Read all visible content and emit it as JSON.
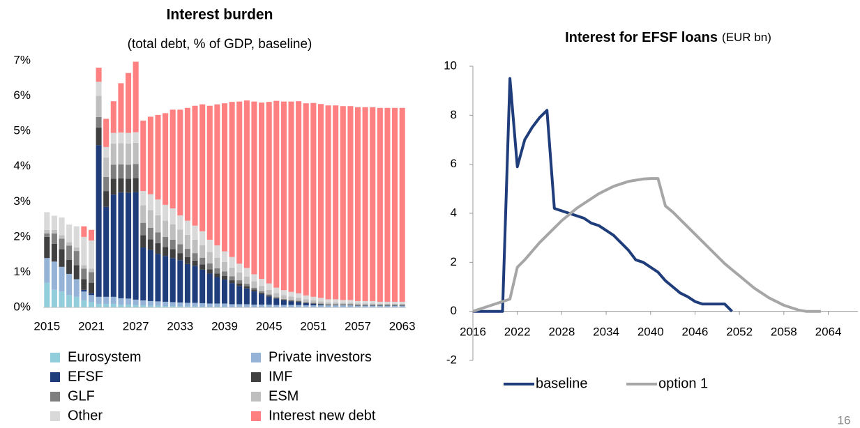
{
  "chart_data": [
    {
      "type": "stacked-bar",
      "title": "Interest burden",
      "subtitle": "(total debt, % of GDP, baseline)",
      "categories": [
        "2015",
        null,
        null,
        null,
        null,
        null,
        "2021",
        null,
        null,
        null,
        null,
        null,
        "2027",
        null,
        null,
        null,
        null,
        null,
        "2033",
        null,
        null,
        null,
        null,
        null,
        "2039",
        null,
        null,
        null,
        null,
        null,
        "2045",
        null,
        null,
        null,
        null,
        null,
        "2051",
        null,
        null,
        null,
        null,
        null,
        "2057",
        null,
        null,
        null,
        null,
        null,
        "2063"
      ],
      "ylim": [
        0,
        7
      ],
      "yticks": [
        {
          "value": 0,
          "label": "0%"
        },
        {
          "value": 1,
          "label": "1%"
        },
        {
          "value": 2,
          "label": "2%"
        },
        {
          "value": 3,
          "label": "3%"
        },
        {
          "value": 4,
          "label": "4%"
        },
        {
          "value": 5,
          "label": "5%"
        },
        {
          "value": 6,
          "label": "6%"
        },
        {
          "value": 7,
          "label": "7%"
        }
      ],
      "series": [
        {
          "name": "Eurosystem",
          "color": "#92cddc",
          "values": [
            0.7,
            0.5,
            0.45,
            0.35,
            0.3,
            0.2,
            0.15,
            0.1,
            0.1,
            0.1,
            0.08,
            0.08,
            0.07,
            0.06,
            0.05,
            0.05,
            0.04,
            0.04,
            0.03,
            0.03,
            0.03,
            0.02,
            0.02,
            0.02,
            0.02,
            0.01,
            0.01,
            0.01,
            0.01,
            0.01,
            0.01,
            0.01,
            0.01,
            0.01,
            0.01,
            0.01,
            0.01,
            0.01,
            0.01,
            0.01,
            0.01,
            0.01,
            0.01,
            0.01,
            0.01,
            0.01,
            0.01,
            0.01,
            0.01
          ]
        },
        {
          "name": "Private investors",
          "color": "#95b3d7",
          "values": [
            0.7,
            0.8,
            0.7,
            0.6,
            0.5,
            0.25,
            0.2,
            0.2,
            0.2,
            0.2,
            0.18,
            0.17,
            0.15,
            0.14,
            0.13,
            0.12,
            0.12,
            0.11,
            0.11,
            0.1,
            0.1,
            0.1,
            0.09,
            0.09,
            0.09,
            0.08,
            0.08,
            0.08,
            0.07,
            0.07,
            0.07,
            0.06,
            0.06,
            0.06,
            0.06,
            0.05,
            0.05,
            0.05,
            0.05,
            0.05,
            0.05,
            0.05,
            0.04,
            0.04,
            0.04,
            0.04,
            0.04,
            0.04,
            0.04
          ]
        },
        {
          "name": "EFSF",
          "color": "#1f3d7a",
          "values": [
            0,
            0,
            0,
            0,
            0,
            0.05,
            0.05,
            4.3,
            2.55,
            2.9,
            3.0,
            3.0,
            3.05,
            1.5,
            1.45,
            1.35,
            1.3,
            1.25,
            1.2,
            1.1,
            1.05,
            0.95,
            0.85,
            0.75,
            0.68,
            0.6,
            0.52,
            0.45,
            0.38,
            0.3,
            0.23,
            0.18,
            0.13,
            0.1,
            0.08,
            0.06,
            0.04,
            0.02,
            0,
            0,
            0,
            0,
            0,
            0,
            0,
            0,
            0,
            0,
            0
          ]
        },
        {
          "name": "IMF",
          "color": "#404040",
          "values": [
            0.6,
            0.5,
            0.5,
            0.4,
            0.4,
            0.3,
            0.3,
            0.5,
            0.45,
            0.45,
            0.4,
            0.4,
            0.4,
            0.35,
            0.3,
            0.3,
            0.25,
            0.25,
            0.2,
            0.2,
            0.15,
            0.15,
            0.12,
            0.1,
            0.1,
            0.08,
            0.07,
            0.06,
            0.05,
            0.04,
            0.03,
            0.02,
            0.02,
            0.02,
            0.02,
            0.01,
            0.01,
            0.01,
            0.01,
            0.01,
            0.01,
            0.01,
            0.01,
            0.01,
            0.01,
            0.01,
            0.01,
            0.01,
            0.01
          ]
        },
        {
          "name": "GLF",
          "color": "#7f7f7f",
          "values": [
            0.1,
            0.3,
            0.3,
            0.4,
            0.4,
            0.3,
            0.3,
            0.3,
            0.4,
            0.4,
            0.4,
            0.4,
            0.4,
            0.35,
            0.33,
            0.31,
            0.29,
            0.27,
            0.25,
            0.23,
            0.21,
            0.19,
            0.17,
            0.15,
            0.13,
            0.11,
            0.09,
            0.07,
            0.05,
            0.04,
            0.03,
            0.02,
            0.02,
            0.02,
            0.02,
            0.02,
            0.02,
            0.02,
            0.02,
            0.02,
            0.02,
            0.02,
            0.02,
            0.02,
            0.02,
            0.02,
            0.02,
            0.02,
            0.02
          ]
        },
        {
          "name": "ESM",
          "color": "#bfbfbf",
          "values": [
            0.1,
            0.1,
            0.1,
            0.1,
            0.1,
            0.1,
            0.1,
            0.6,
            0.55,
            0.6,
            0.6,
            0.6,
            0.6,
            0.5,
            0.5,
            0.48,
            0.46,
            0.44,
            0.42,
            0.4,
            0.38,
            0.35,
            0.32,
            0.3,
            0.27,
            0.25,
            0.22,
            0.2,
            0.18,
            0.15,
            0.13,
            0.12,
            0.11,
            0.1,
            0.09,
            0.08,
            0.07,
            0.06,
            0.05,
            0.05,
            0.04,
            0.04,
            0.03,
            0.03,
            0.03,
            0.02,
            0.02,
            0.02,
            0.02
          ]
        },
        {
          "name": "Other",
          "color": "#d9d9d9",
          "values": [
            0.5,
            0.4,
            0.5,
            0.5,
            0.6,
            0.8,
            0.8,
            0.4,
            0.3,
            0.3,
            0.3,
            0.3,
            0.3,
            0.4,
            0.45,
            0.45,
            0.45,
            0.45,
            0.4,
            0.4,
            0.4,
            0.4,
            0.35,
            0.35,
            0.3,
            0.3,
            0.25,
            0.25,
            0.2,
            0.2,
            0.18,
            0.15,
            0.14,
            0.13,
            0.12,
            0.11,
            0.1,
            0.1,
            0.09,
            0.09,
            0.08,
            0.08,
            0.07,
            0.07,
            0.07,
            0.06,
            0.06,
            0.06,
            0.06
          ]
        },
        {
          "name": "Interest new debt",
          "color": "#ff8080",
          "values": [
            0,
            0,
            0,
            0,
            0,
            0.3,
            0.3,
            0.4,
            0.8,
            0.9,
            1.4,
            1.7,
            2.0,
            2.0,
            2.2,
            2.4,
            2.6,
            2.8,
            3.0,
            3.2,
            3.4,
            3.6,
            3.8,
            4.0,
            4.2,
            4.4,
            4.6,
            4.75,
            4.9,
            5.0,
            5.15,
            5.3,
            5.35,
            5.4,
            5.45,
            5.45,
            5.5,
            5.5,
            5.5,
            5.5,
            5.5,
            5.5,
            5.5,
            5.5,
            5.5,
            5.5,
            5.5,
            5.5,
            5.5
          ]
        }
      ]
    },
    {
      "type": "line",
      "title": "Interest for EFSF loans",
      "subtitle": "(EUR bn)",
      "xlim": [
        2016,
        2068
      ],
      "xticks": [
        2016,
        2022,
        2028,
        2034,
        2040,
        2046,
        2052,
        2058,
        2064
      ],
      "ylim": [
        -2,
        10
      ],
      "yticks": [
        -2,
        0,
        2,
        4,
        6,
        8,
        10
      ],
      "series": [
        {
          "name": "baseline",
          "color": "#1f3d7a",
          "x": [
            2016,
            2017,
            2018,
            2019,
            2020,
            2021,
            2022,
            2023,
            2024,
            2025,
            2026,
            2027,
            2028,
            2029,
            2030,
            2031,
            2032,
            2033,
            2034,
            2035,
            2036,
            2037,
            2038,
            2039,
            2040,
            2041,
            2042,
            2043,
            2044,
            2045,
            2046,
            2047,
            2048,
            2049,
            2050,
            2051
          ],
          "values": [
            0,
            0,
            0,
            0,
            0,
            9.5,
            5.9,
            7.0,
            7.5,
            7.9,
            8.2,
            4.2,
            4.1,
            4.0,
            3.9,
            3.8,
            3.6,
            3.5,
            3.3,
            3.1,
            2.8,
            2.5,
            2.1,
            2.0,
            1.8,
            1.6,
            1.25,
            1.0,
            0.75,
            0.6,
            0.4,
            0.3,
            0.3,
            0.3,
            0.3,
            0
          ]
        },
        {
          "name": "option 1",
          "color": "#a6a6a6",
          "x": [
            2016,
            2017,
            2018,
            2019,
            2020,
            2021,
            2022,
            2023,
            2024,
            2025,
            2026,
            2027,
            2028,
            2029,
            2030,
            2031,
            2032,
            2033,
            2034,
            2035,
            2036,
            2037,
            2038,
            2039,
            2040,
            2041,
            2042,
            2043,
            2044,
            2045,
            2046,
            2047,
            2048,
            2049,
            2050,
            2051,
            2052,
            2053,
            2054,
            2055,
            2056,
            2057,
            2058,
            2059,
            2060,
            2061,
            2062,
            2063
          ],
          "values": [
            0,
            0.1,
            0.2,
            0.3,
            0.4,
            0.5,
            1.8,
            2.1,
            2.45,
            2.8,
            3.1,
            3.4,
            3.7,
            3.95,
            4.2,
            4.4,
            4.6,
            4.8,
            4.95,
            5.1,
            5.2,
            5.3,
            5.35,
            5.4,
            5.42,
            5.42,
            4.3,
            4.05,
            3.75,
            3.45,
            3.15,
            2.85,
            2.55,
            2.25,
            1.95,
            1.7,
            1.45,
            1.2,
            0.95,
            0.75,
            0.55,
            0.4,
            0.25,
            0.15,
            0.05,
            0,
            0,
            0
          ]
        }
      ]
    }
  ],
  "page_number": "16"
}
